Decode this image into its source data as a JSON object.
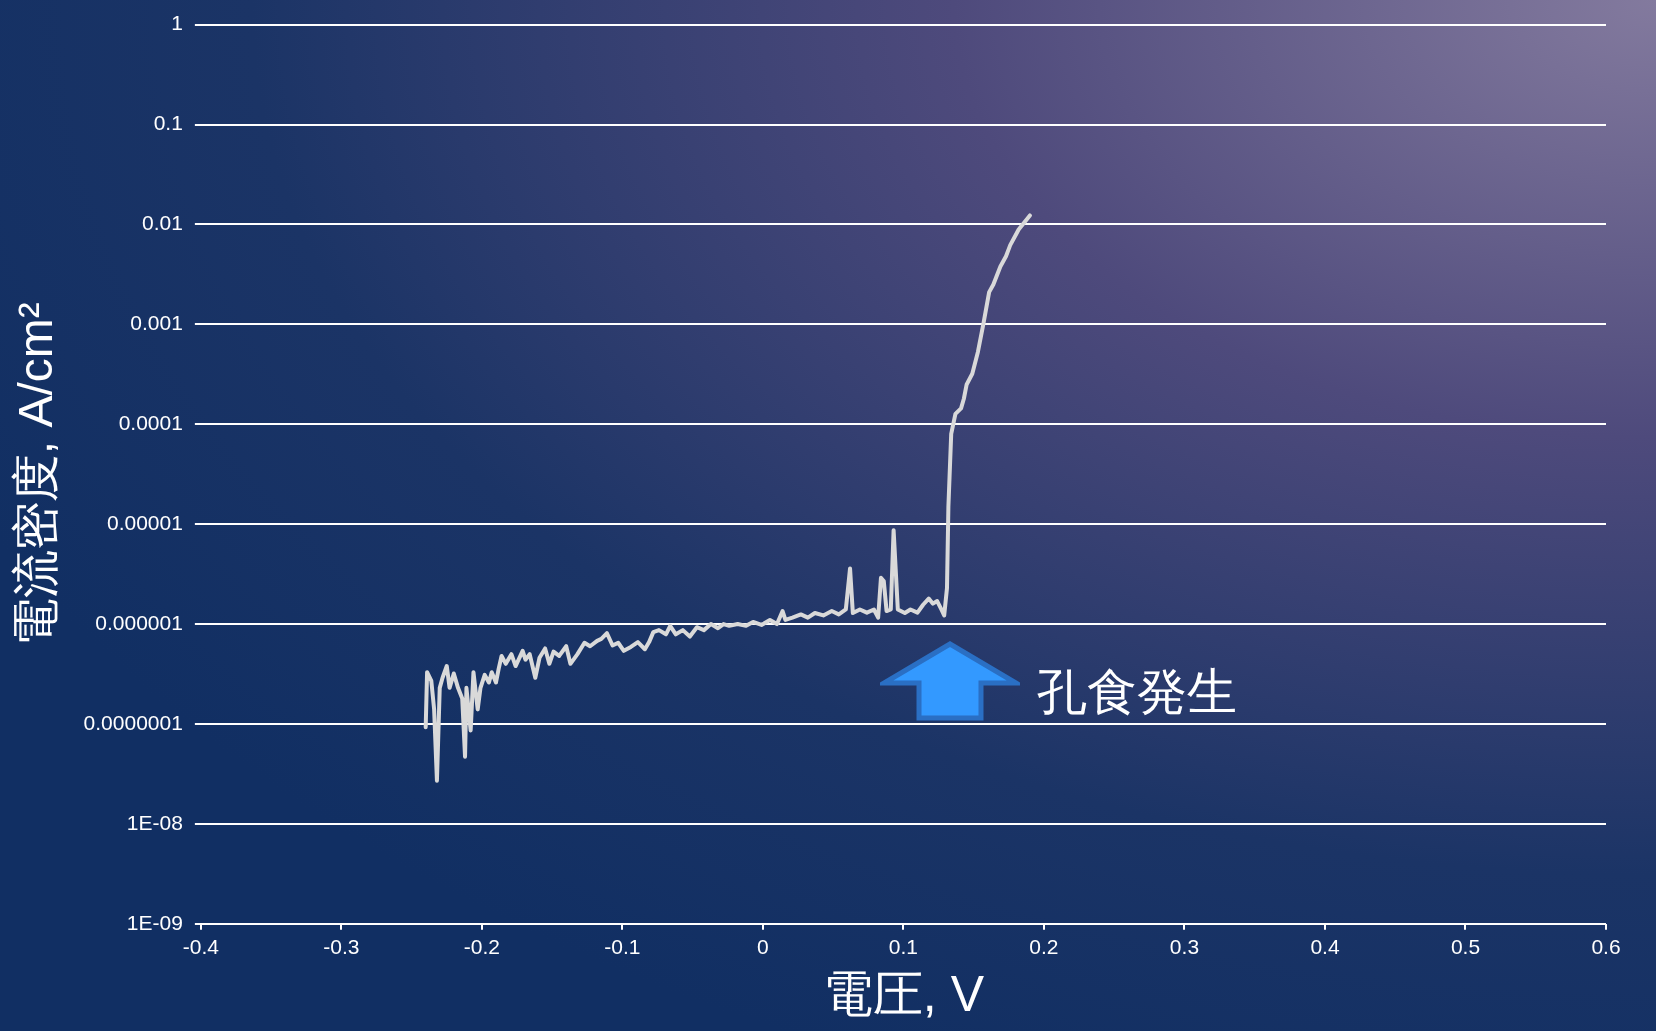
{
  "chart_data": {
    "type": "line",
    "xlabel": "電圧, V",
    "ylabel": "電流密度, A/cm²",
    "log": "y",
    "grid": "y",
    "xlim": [
      -0.4,
      0.6
    ],
    "xticks": [
      -0.4,
      -0.3,
      -0.2,
      -0.1,
      0,
      0.1,
      0.2,
      0.3,
      0.4,
      0.5,
      0.6
    ],
    "ylim": [
      1e-09,
      1
    ],
    "yticks": [
      {
        "value": 1e-09,
        "label": "1E-09"
      },
      {
        "value": 1e-08,
        "label": "1E-08"
      },
      {
        "value": 1e-07,
        "label": "0.0000001"
      },
      {
        "value": 1e-06,
        "label": "0.000001"
      },
      {
        "value": 1e-05,
        "label": "0.00001"
      },
      0.0001,
      0.001,
      0.01,
      0.1,
      1
    ],
    "annotations": [
      "孔食発生"
    ],
    "series": [
      {
        "color": "#d9d9d9",
        "x": [
          -0.24,
          -0.239,
          -0.236,
          -0.234,
          -0.232,
          -0.23,
          -0.228,
          -0.225,
          -0.223,
          -0.22,
          -0.217,
          -0.214,
          -0.212,
          -0.211,
          -0.208,
          -0.206,
          -0.203,
          -0.201,
          -0.198,
          -0.195,
          -0.193,
          -0.19,
          -0.188,
          -0.186,
          -0.183,
          -0.179,
          -0.176,
          -0.171,
          -0.169,
          -0.166,
          -0.162,
          -0.159,
          -0.155,
          -0.152,
          -0.149,
          -0.145,
          -0.14,
          -0.137,
          -0.132,
          -0.127,
          -0.123,
          -0.118,
          -0.115,
          -0.111,
          -0.107,
          -0.103,
          -0.099,
          -0.094,
          -0.089,
          -0.084,
          -0.081,
          -0.078,
          -0.074,
          -0.069,
          -0.066,
          -0.062,
          -0.057,
          -0.052,
          -0.047,
          -0.042,
          -0.037,
          -0.032,
          -0.028,
          -0.024,
          -0.018,
          -0.012,
          -0.007,
          -0.001,
          0.005,
          0.01,
          0.014,
          0.016,
          0.021,
          0.027,
          0.032,
          0.037,
          0.043,
          0.049,
          0.054,
          0.059,
          0.062,
          0.064,
          0.069,
          0.074,
          0.079,
          0.082,
          0.084,
          0.086,
          0.088,
          0.091,
          0.093,
          0.096,
          0.101,
          0.105,
          0.11,
          0.114,
          0.118,
          0.121,
          0.124,
          0.127,
          0.129,
          0.131,
          0.132,
          0.134,
          0.137,
          0.141,
          0.143,
          0.145,
          0.149,
          0.153,
          0.157,
          0.161,
          0.164,
          0.169,
          0.173,
          0.176,
          0.182,
          0.19
        ],
        "values": [
          9.3e-08,
          3.3e-07,
          2.7e-07,
          1.4e-07,
          2.7e-08,
          2.3e-07,
          2.9e-07,
          3.8e-07,
          2.3e-07,
          3.2e-07,
          2.3e-07,
          1.8e-07,
          4.7e-08,
          2.3e-07,
          8.6e-08,
          3.3e-07,
          1.4e-07,
          2.3e-07,
          3.1e-07,
          2.6e-07,
          3.3e-07,
          2.6e-07,
          3.6e-07,
          4.8e-07,
          4e-07,
          5e-07,
          3.8e-07,
          5.4e-07,
          4.4e-07,
          5e-07,
          2.9e-07,
          4.6e-07,
          5.7e-07,
          4e-07,
          5.3e-07,
          4.8e-07,
          6e-07,
          4e-07,
          5e-07,
          6.5e-07,
          6e-07,
          6.8e-07,
          7.1e-07,
          8.1e-07,
          6.1e-07,
          6.5e-07,
          5.4e-07,
          5.9e-07,
          6.6e-07,
          5.6e-07,
          6.6e-07,
          8.3e-07,
          8.7e-07,
          7.9e-07,
          9.6e-07,
          7.9e-07,
          8.7e-07,
          7.5e-07,
          9.3e-07,
          8.7e-07,
          1e-06,
          9.1e-07,
          1e-06,
          9.6e-07,
          1e-06,
          9.6e-07,
          1.05e-06,
          9.8e-07,
          1.1e-06,
          1e-06,
          1.35e-06,
          1.1e-06,
          1.16e-06,
          1.25e-06,
          1.16e-06,
          1.29e-06,
          1.22e-06,
          1.35e-06,
          1.25e-06,
          1.4e-06,
          3.6e-06,
          1.29e-06,
          1.4e-06,
          1.3e-06,
          1.4e-06,
          1.16e-06,
          2.9e-06,
          2.7e-06,
          1.35e-06,
          1.4e-06,
          8.7e-06,
          1.4e-06,
          1.29e-06,
          1.4e-06,
          1.3e-06,
          1.56e-06,
          1.8e-06,
          1.6e-06,
          1.7e-06,
          1.4e-06,
          1.22e-06,
          2.3e-06,
          1.5e-05,
          8e-05,
          0.000127,
          0.000144,
          0.00018,
          0.00025,
          0.00032,
          0.00053,
          0.00103,
          0.0021,
          0.0025,
          0.0038,
          0.0048,
          0.0062,
          0.0089,
          0.0123
        ]
      }
    ]
  }
}
